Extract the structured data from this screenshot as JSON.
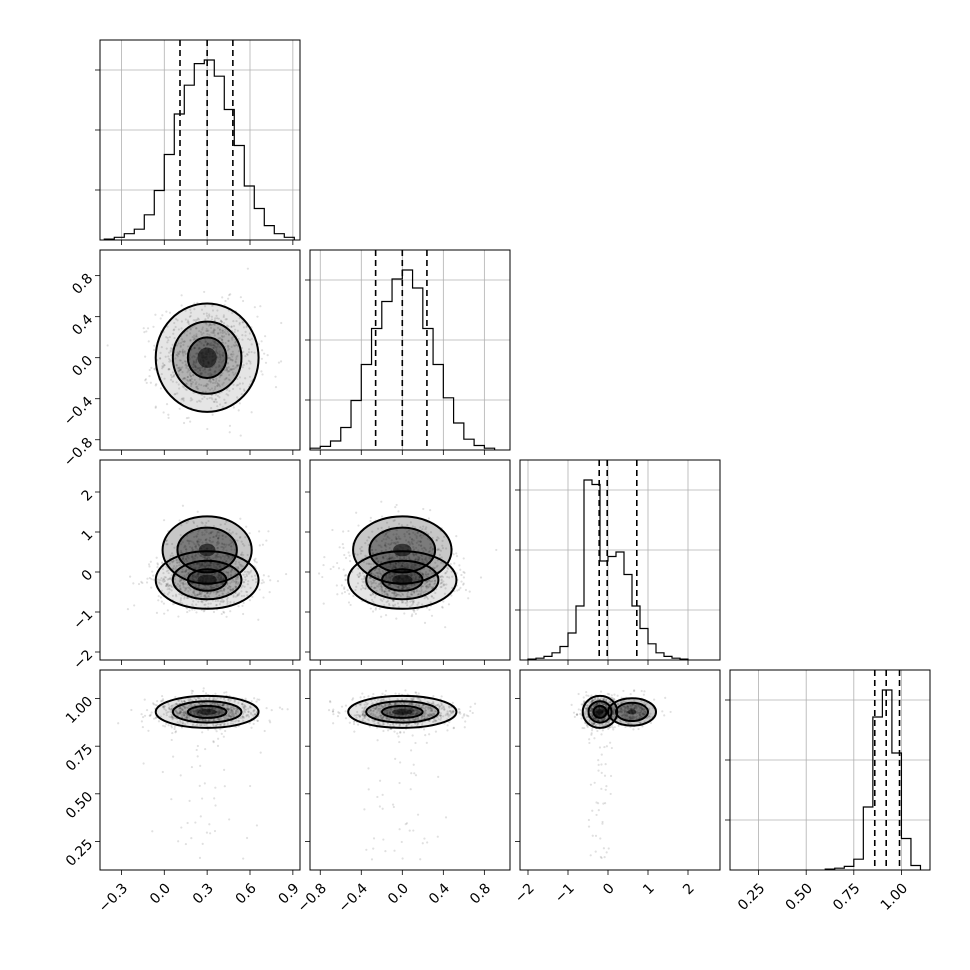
{
  "chart_data": {
    "type": "corner",
    "params": [
      {
        "ticks": [
          "−0.3",
          "0.0",
          "0.3",
          "0.6",
          "0.9"
        ],
        "tick_values": [
          -0.3,
          0.0,
          0.3,
          0.6,
          0.9
        ],
        "range": [
          -0.45,
          0.95
        ],
        "quantiles": [
          0.11,
          0.3,
          0.48
        ],
        "hist_edges": [
          -0.42,
          -0.35,
          -0.28,
          -0.21,
          -0.14,
          -0.07,
          0.0,
          0.07,
          0.14,
          0.21,
          0.28,
          0.35,
          0.42,
          0.49,
          0.56,
          0.63,
          0.7,
          0.77,
          0.84,
          0.91
        ],
        "hist_counts": [
          1,
          3,
          7,
          12,
          28,
          55,
          95,
          140,
          172,
          196,
          200,
          182,
          145,
          105,
          60,
          35,
          16,
          7,
          3
        ]
      },
      {
        "ticks": [
          "−0.8",
          "−0.4",
          "0.0",
          "0.4",
          "0.8"
        ],
        "tick_values": [
          -0.8,
          -0.4,
          0.0,
          0.4,
          0.8
        ],
        "range": [
          -0.9,
          1.05
        ],
        "quantiles": [
          -0.26,
          0.0,
          0.24
        ],
        "hist_edges": [
          -0.9,
          -0.8,
          -0.7,
          -0.6,
          -0.5,
          -0.4,
          -0.3,
          -0.2,
          -0.1,
          0.0,
          0.1,
          0.2,
          0.3,
          0.4,
          0.5,
          0.6,
          0.7,
          0.8,
          0.9
        ],
        "hist_counts": [
          2,
          4,
          10,
          25,
          55,
          95,
          135,
          165,
          190,
          200,
          180,
          135,
          95,
          58,
          30,
          12,
          5,
          2
        ]
      },
      {
        "ticks": [
          "−2",
          "−1",
          "0",
          "1",
          "2"
        ],
        "tick_values": [
          -2,
          -1,
          0,
          1,
          2
        ],
        "range": [
          -2.2,
          2.8
        ],
        "quantiles": [
          -0.22,
          -0.02,
          0.72
        ],
        "hist_edges": [
          -2.0,
          -1.8,
          -1.6,
          -1.4,
          -1.2,
          -1.0,
          -0.8,
          -0.6,
          -0.4,
          -0.2,
          0.0,
          0.2,
          0.4,
          0.6,
          0.8,
          1.0,
          1.2,
          1.4,
          1.6,
          1.8,
          2.0
        ],
        "hist_counts": [
          1,
          2,
          4,
          8,
          15,
          30,
          60,
          200,
          195,
          110,
          115,
          120,
          95,
          60,
          35,
          18,
          8,
          4,
          2,
          1
        ]
      },
      {
        "ticks": [
          "0.25",
          "0.50",
          "0.75",
          "1.00"
        ],
        "tick_values": [
          0.25,
          0.5,
          0.75,
          1.0
        ],
        "range": [
          0.1,
          1.15
        ],
        "quantiles": [
          0.86,
          0.92,
          0.99
        ],
        "hist_edges": [
          0.6,
          0.65,
          0.7,
          0.75,
          0.8,
          0.85,
          0.9,
          0.95,
          1.0,
          1.05,
          1.1
        ],
        "hist_counts": [
          1,
          2,
          4,
          12,
          70,
          170,
          200,
          130,
          35,
          5
        ]
      }
    ],
    "pair_blobs": [
      {
        "row": 1,
        "col": 0,
        "blobs": [
          {
            "cx": 0.3,
            "cy": 0.0,
            "sx": 0.15,
            "sy": 0.22,
            "r": [
              0.9,
              1.6,
              2.4
            ]
          }
        ]
      },
      {
        "row": 2,
        "col": 0,
        "blobs": [
          {
            "cx": 0.3,
            "cy": -0.2,
            "sx": 0.15,
            "sy": 0.3,
            "r": [
              0.9,
              1.6,
              2.4
            ]
          },
          {
            "cx": 0.3,
            "cy": 0.55,
            "sx": 0.13,
            "sy": 0.35,
            "r": [
              1.6,
              2.4
            ]
          }
        ]
      },
      {
        "row": 2,
        "col": 1,
        "blobs": [
          {
            "cx": 0.0,
            "cy": -0.2,
            "sx": 0.22,
            "sy": 0.3,
            "r": [
              0.9,
              1.6,
              2.4
            ]
          },
          {
            "cx": 0.0,
            "cy": 0.55,
            "sx": 0.2,
            "sy": 0.35,
            "r": [
              1.6,
              2.4
            ]
          }
        ]
      },
      {
        "row": 3,
        "col": 0,
        "blobs": [
          {
            "cx": 0.3,
            "cy": 0.93,
            "sx": 0.15,
            "sy": 0.035,
            "r": [
              0.9,
              1.6,
              2.4
            ]
          }
        ]
      },
      {
        "row": 3,
        "col": 1,
        "blobs": [
          {
            "cx": 0.0,
            "cy": 0.93,
            "sx": 0.22,
            "sy": 0.035,
            "r": [
              0.9,
              1.6,
              2.4
            ]
          }
        ]
      },
      {
        "row": 3,
        "col": 2,
        "blobs": [
          {
            "cx": -0.2,
            "cy": 0.93,
            "sx": 0.18,
            "sy": 0.035,
            "r": [
              0.9,
              1.6,
              2.4
            ]
          },
          {
            "cx": 0.6,
            "cy": 0.93,
            "sx": 0.25,
            "sy": 0.03,
            "r": [
              1.6,
              2.4
            ]
          }
        ]
      }
    ]
  }
}
